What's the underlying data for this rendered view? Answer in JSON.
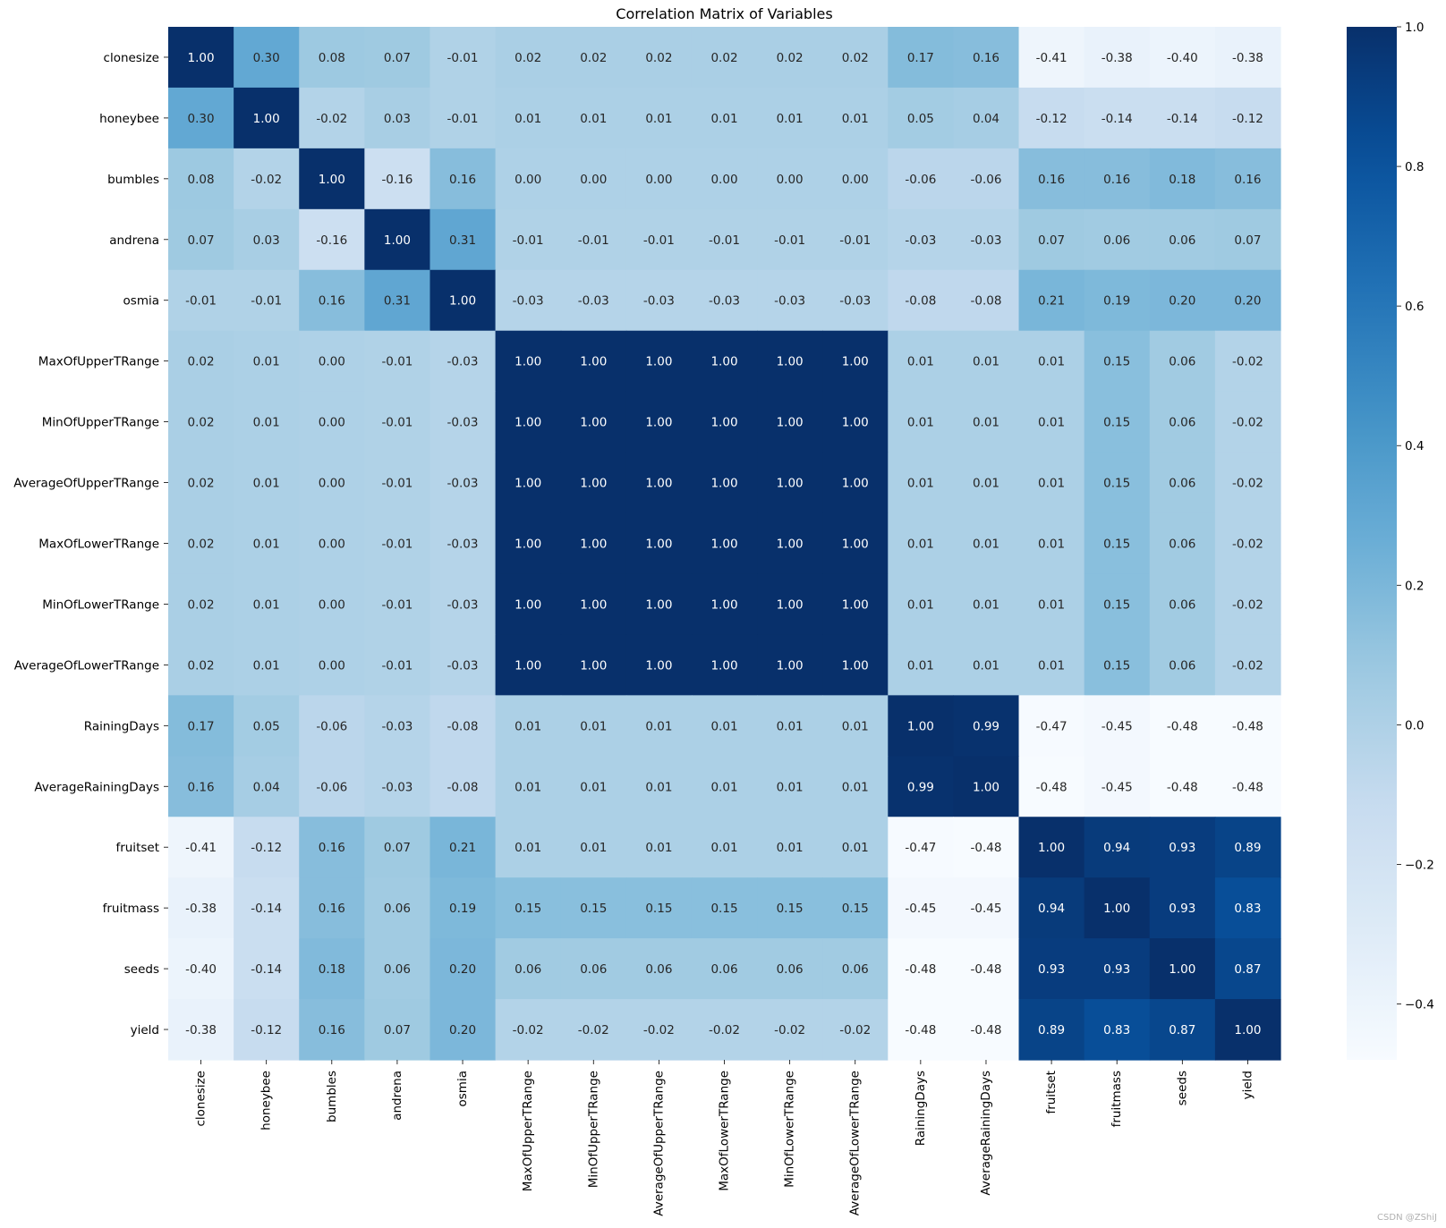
{
  "chart_data": {
    "type": "heatmap",
    "title": "Correlation Matrix of Variables",
    "labels": [
      "clonesize",
      "honeybee",
      "bumbles",
      "andrena",
      "osmia",
      "MaxOfUpperTRange",
      "MinOfUpperTRange",
      "AverageOfUpperTRange",
      "MaxOfLowerTRange",
      "MinOfLowerTRange",
      "AverageOfLowerTRange",
      "RainingDays",
      "AverageRainingDays",
      "fruitset",
      "fruitmass",
      "seeds",
      "yield"
    ],
    "matrix": [
      [
        1.0,
        0.3,
        0.08,
        0.07,
        -0.01,
        0.02,
        0.02,
        0.02,
        0.02,
        0.02,
        0.02,
        0.17,
        0.16,
        -0.41,
        -0.38,
        -0.4,
        -0.38
      ],
      [
        0.3,
        1.0,
        -0.02,
        0.03,
        -0.01,
        0.01,
        0.01,
        0.01,
        0.01,
        0.01,
        0.01,
        0.05,
        0.04,
        -0.12,
        -0.14,
        -0.14,
        -0.12
      ],
      [
        0.08,
        -0.02,
        1.0,
        -0.16,
        0.16,
        -0.0,
        -0.0,
        -0.0,
        -0.0,
        -0.0,
        -0.0,
        -0.06,
        -0.06,
        0.16,
        0.16,
        0.18,
        0.16
      ],
      [
        0.07,
        0.03,
        -0.16,
        1.0,
        0.31,
        -0.01,
        -0.01,
        -0.01,
        -0.01,
        -0.01,
        -0.01,
        -0.03,
        -0.03,
        0.07,
        0.06,
        0.06,
        0.07
      ],
      [
        -0.01,
        -0.01,
        0.16,
        0.31,
        1.0,
        -0.03,
        -0.03,
        -0.03,
        -0.03,
        -0.03,
        -0.03,
        -0.08,
        -0.08,
        0.21,
        0.19,
        0.2,
        0.2
      ],
      [
        0.02,
        0.01,
        -0.0,
        -0.01,
        -0.03,
        1.0,
        1.0,
        1.0,
        1.0,
        1.0,
        1.0,
        0.01,
        0.01,
        0.01,
        0.15,
        0.06,
        -0.02
      ],
      [
        0.02,
        0.01,
        -0.0,
        -0.01,
        -0.03,
        1.0,
        1.0,
        1.0,
        1.0,
        1.0,
        1.0,
        0.01,
        0.01,
        0.01,
        0.15,
        0.06,
        -0.02
      ],
      [
        0.02,
        0.01,
        -0.0,
        -0.01,
        -0.03,
        1.0,
        1.0,
        1.0,
        1.0,
        1.0,
        1.0,
        0.01,
        0.01,
        0.01,
        0.15,
        0.06,
        -0.02
      ],
      [
        0.02,
        0.01,
        -0.0,
        -0.01,
        -0.03,
        1.0,
        1.0,
        1.0,
        1.0,
        1.0,
        1.0,
        0.01,
        0.01,
        0.01,
        0.15,
        0.06,
        -0.02
      ],
      [
        0.02,
        0.01,
        -0.0,
        -0.01,
        -0.03,
        1.0,
        1.0,
        1.0,
        1.0,
        1.0,
        1.0,
        0.01,
        0.01,
        0.01,
        0.15,
        0.06,
        -0.02
      ],
      [
        0.02,
        0.01,
        -0.0,
        -0.01,
        -0.03,
        1.0,
        1.0,
        1.0,
        1.0,
        1.0,
        1.0,
        0.01,
        0.01,
        0.01,
        0.15,
        0.06,
        -0.02
      ],
      [
        0.17,
        0.05,
        -0.06,
        -0.03,
        -0.08,
        0.01,
        0.01,
        0.01,
        0.01,
        0.01,
        0.01,
        1.0,
        0.99,
        -0.47,
        -0.45,
        -0.48,
        -0.48
      ],
      [
        0.16,
        0.04,
        -0.06,
        -0.03,
        -0.08,
        0.01,
        0.01,
        0.01,
        0.01,
        0.01,
        0.01,
        0.99,
        1.0,
        -0.48,
        -0.45,
        -0.48,
        -0.48
      ],
      [
        -0.41,
        -0.12,
        0.16,
        0.07,
        0.21,
        0.01,
        0.01,
        0.01,
        0.01,
        0.01,
        0.01,
        -0.47,
        -0.48,
        1.0,
        0.94,
        0.93,
        0.89
      ],
      [
        -0.38,
        -0.14,
        0.16,
        0.06,
        0.19,
        0.15,
        0.15,
        0.15,
        0.15,
        0.15,
        0.15,
        -0.45,
        -0.45,
        0.94,
        1.0,
        0.93,
        0.83
      ],
      [
        -0.4,
        -0.14,
        0.18,
        0.06,
        0.2,
        0.06,
        0.06,
        0.06,
        0.06,
        0.06,
        0.06,
        -0.48,
        -0.48,
        0.93,
        0.93,
        1.0,
        0.87
      ],
      [
        -0.38,
        -0.12,
        0.16,
        0.07,
        0.2,
        -0.02,
        -0.02,
        -0.02,
        -0.02,
        -0.02,
        -0.02,
        -0.48,
        -0.48,
        0.89,
        0.83,
        0.87,
        1.0
      ]
    ],
    "vmin": -0.48,
    "vmax": 1.0,
    "colormap": "Blues",
    "colorbar": {
      "ticks": [
        1.0,
        0.8,
        0.6,
        0.4,
        0.2,
        0.0,
        -0.2,
        -0.4
      ],
      "tick_labels": [
        "1.0",
        "0.8",
        "0.6",
        "0.4",
        "0.2",
        "0.0",
        "−0.2",
        "−0.4"
      ]
    },
    "grid": false,
    "legend": "colorbar-right"
  },
  "watermark": "CSDN @ZShiJ"
}
